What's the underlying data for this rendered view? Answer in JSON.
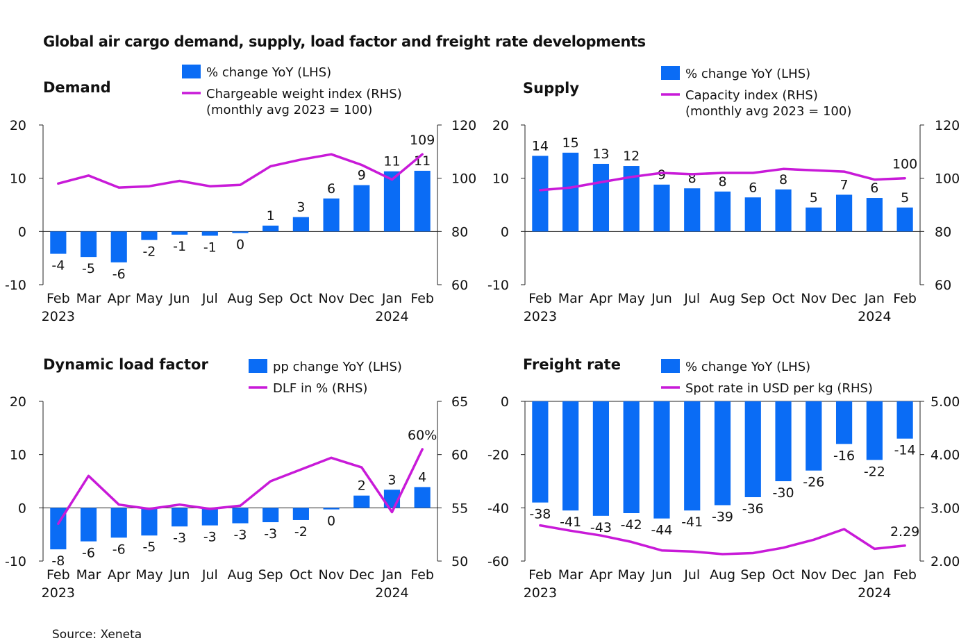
{
  "title": "Global air cargo demand, supply, load factor and freight rate developments",
  "source": "Source: Xeneta",
  "colors": {
    "bar": "#0a6cf5",
    "line": "#c81ad8",
    "text": "#111111"
  },
  "chart_data": [
    {
      "type": "bar",
      "title": "Demand",
      "categories": [
        "Feb",
        "Mar",
        "Apr",
        "May",
        "Jun",
        "Jul",
        "Aug",
        "Sep",
        "Oct",
        "Nov",
        "Dec",
        "Jan",
        "Feb"
      ],
      "year_labels": [
        "2023",
        "",
        "",
        "",
        "",
        "",
        "",
        "",
        "",
        "",
        "",
        "2024",
        ""
      ],
      "series": [
        {
          "name": "% change YoY (LHS)",
          "axis": "left",
          "values": [
            -4.2,
            -4.8,
            -5.8,
            -1.6,
            -0.6,
            -0.8,
            -0.3,
            1.1,
            2.7,
            6.2,
            8.7,
            11.3,
            11.4
          ],
          "labels": [
            "-4",
            "-5",
            "-6",
            "-2",
            "-1",
            "-1",
            "0",
            "1",
            "3",
            "6",
            "9",
            "11",
            "11"
          ]
        },
        {
          "name": "Chargeable weight index (RHS)",
          "name2": "(monthly avg 2023 = 100)",
          "axis": "right",
          "values": [
            98,
            101,
            96.5,
            97,
            99,
            97,
            97.5,
            104.5,
            107,
            109,
            105,
            99.5,
            109
          ],
          "end_label": "109"
        }
      ],
      "ylim_left": [
        -10,
        20
      ],
      "ticks_left": [
        "-10",
        "0",
        "10",
        "20"
      ],
      "ylim_right": [
        60,
        120
      ],
      "ticks_right": [
        "60",
        "80",
        "100",
        "120"
      ]
    },
    {
      "type": "bar",
      "title": "Supply",
      "categories": [
        "Feb",
        "Mar",
        "Apr",
        "May",
        "Jun",
        "Jul",
        "Aug",
        "Sep",
        "Oct",
        "Nov",
        "Dec",
        "Jan",
        "Feb"
      ],
      "year_labels": [
        "2023",
        "",
        "",
        "",
        "",
        "",
        "",
        "",
        "",
        "",
        "",
        "2024",
        ""
      ],
      "series": [
        {
          "name": "% change YoY (LHS)",
          "axis": "left",
          "values": [
            14.2,
            14.8,
            12.7,
            12.3,
            8.8,
            8.1,
            7.5,
            6.4,
            7.9,
            4.5,
            6.9,
            6.3,
            4.5
          ],
          "labels": [
            "14",
            "15",
            "13",
            "12",
            "9",
            "8",
            "8",
            "6",
            "8",
            "5",
            "7",
            "6",
            "5"
          ]
        },
        {
          "name": "Capacity index (RHS)",
          "name2": "(monthly avg 2023 = 100)",
          "axis": "right",
          "values": [
            95.5,
            96.5,
            98.5,
            100.5,
            102,
            101.5,
            102,
            102,
            103.5,
            103,
            102.5,
            99.5,
            100
          ],
          "end_label": "100"
        }
      ],
      "ylim_left": [
        -10,
        20
      ],
      "ticks_left": [
        "-10",
        "0",
        "10",
        "20"
      ],
      "ylim_right": [
        60,
        120
      ],
      "ticks_right": [
        "60",
        "80",
        "100",
        "120"
      ]
    },
    {
      "type": "bar",
      "title": "Dynamic load factor",
      "categories": [
        "Feb",
        "Mar",
        "Apr",
        "May",
        "Jun",
        "Jul",
        "Aug",
        "Sep",
        "Oct",
        "Nov",
        "Dec",
        "Jan",
        "Feb"
      ],
      "year_labels": [
        "2023",
        "",
        "",
        "",
        "",
        "",
        "",
        "",
        "",
        "",
        "",
        "2024",
        ""
      ],
      "series": [
        {
          "name": "pp change YoY (LHS)",
          "axis": "left",
          "values": [
            -7.8,
            -6.3,
            -5.6,
            -5.2,
            -3.5,
            -3.3,
            -2.9,
            -2.7,
            -2.3,
            -0.3,
            2.3,
            3.4,
            3.9
          ],
          "labels": [
            "-8",
            "-6",
            "-6",
            "-5",
            "-3",
            "-3",
            "-3",
            "-3",
            "-2",
            "0",
            "2",
            "3",
            "4"
          ]
        },
        {
          "name": "DLF in % (RHS)",
          "axis": "right",
          "values": [
            53.5,
            58,
            55.3,
            54.9,
            55.3,
            54.9,
            55.2,
            57.5,
            58.6,
            59.7,
            58.8,
            54.6,
            60.5
          ],
          "end_label": "60%"
        }
      ],
      "ylim_left": [
        -10,
        20
      ],
      "ticks_left": [
        "-10",
        "0",
        "10",
        "20"
      ],
      "ylim_right": [
        50,
        65
      ],
      "ticks_right": [
        "50",
        "55",
        "60",
        "65"
      ]
    },
    {
      "type": "bar",
      "title": "Freight rate",
      "categories": [
        "Feb",
        "Mar",
        "Apr",
        "May",
        "Jun",
        "Jul",
        "Aug",
        "Sep",
        "Oct",
        "Nov",
        "Dec",
        "Jan",
        "Feb"
      ],
      "year_labels": [
        "2023",
        "",
        "",
        "",
        "",
        "",
        "",
        "",
        "",
        "",
        "",
        "2024",
        ""
      ],
      "series": [
        {
          "name": "% change YoY (LHS)",
          "axis": "left",
          "values": [
            -38,
            -41,
            -43,
            -42,
            -44,
            -41,
            -39,
            -36,
            -30,
            -26,
            -16,
            -22,
            -14
          ],
          "labels": [
            "-38",
            "-41",
            "-43",
            "-42",
            "-44",
            "-41",
            "-39",
            "-36",
            "-30",
            "-26",
            "-16",
            "-22",
            "-14"
          ]
        },
        {
          "name": "Spot rate in USD per kg (RHS)",
          "axis": "right",
          "values": [
            2.67,
            2.57,
            2.48,
            2.36,
            2.2,
            2.18,
            2.13,
            2.15,
            2.25,
            2.4,
            2.6,
            2.23,
            2.29
          ],
          "end_label": "2.29"
        }
      ],
      "ylim_left": [
        -60,
        0
      ],
      "ticks_left": [
        "-60",
        "-40",
        "-20",
        "0"
      ],
      "ylim_right": [
        2,
        5
      ],
      "ticks_right": [
        "2.00",
        "3.00",
        "4.00",
        "5.00"
      ]
    }
  ]
}
